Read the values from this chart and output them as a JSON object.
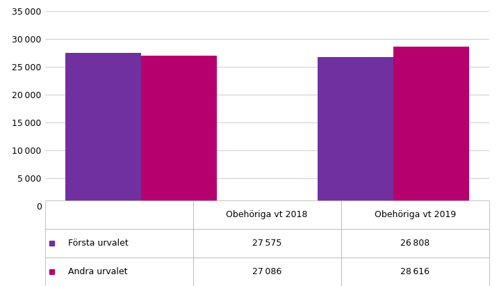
{
  "categories": [
    "Obehöriga vt 2018",
    "Obehöriga vt 2019"
  ],
  "series": [
    {
      "name": "Första urvalet",
      "values": [
        27575,
        26808
      ],
      "color": "#7030A0"
    },
    {
      "name": "Andra urvalet",
      "values": [
        27086,
        28616
      ],
      "color": "#B5006E"
    }
  ],
  "ylim": [
    0,
    35000
  ],
  "yticks": [
    0,
    5000,
    10000,
    15000,
    20000,
    25000,
    30000,
    35000
  ],
  "table_values": [
    [
      "27 575",
      "26 808"
    ],
    [
      "27 086",
      "28 616"
    ]
  ],
  "grid_color": "#d0d0d0",
  "bar_width": 0.3,
  "legend_colors": [
    "#7030A0",
    "#B5006E"
  ],
  "legend_labels": [
    "Första urvalet",
    "Andra urvalet"
  ]
}
